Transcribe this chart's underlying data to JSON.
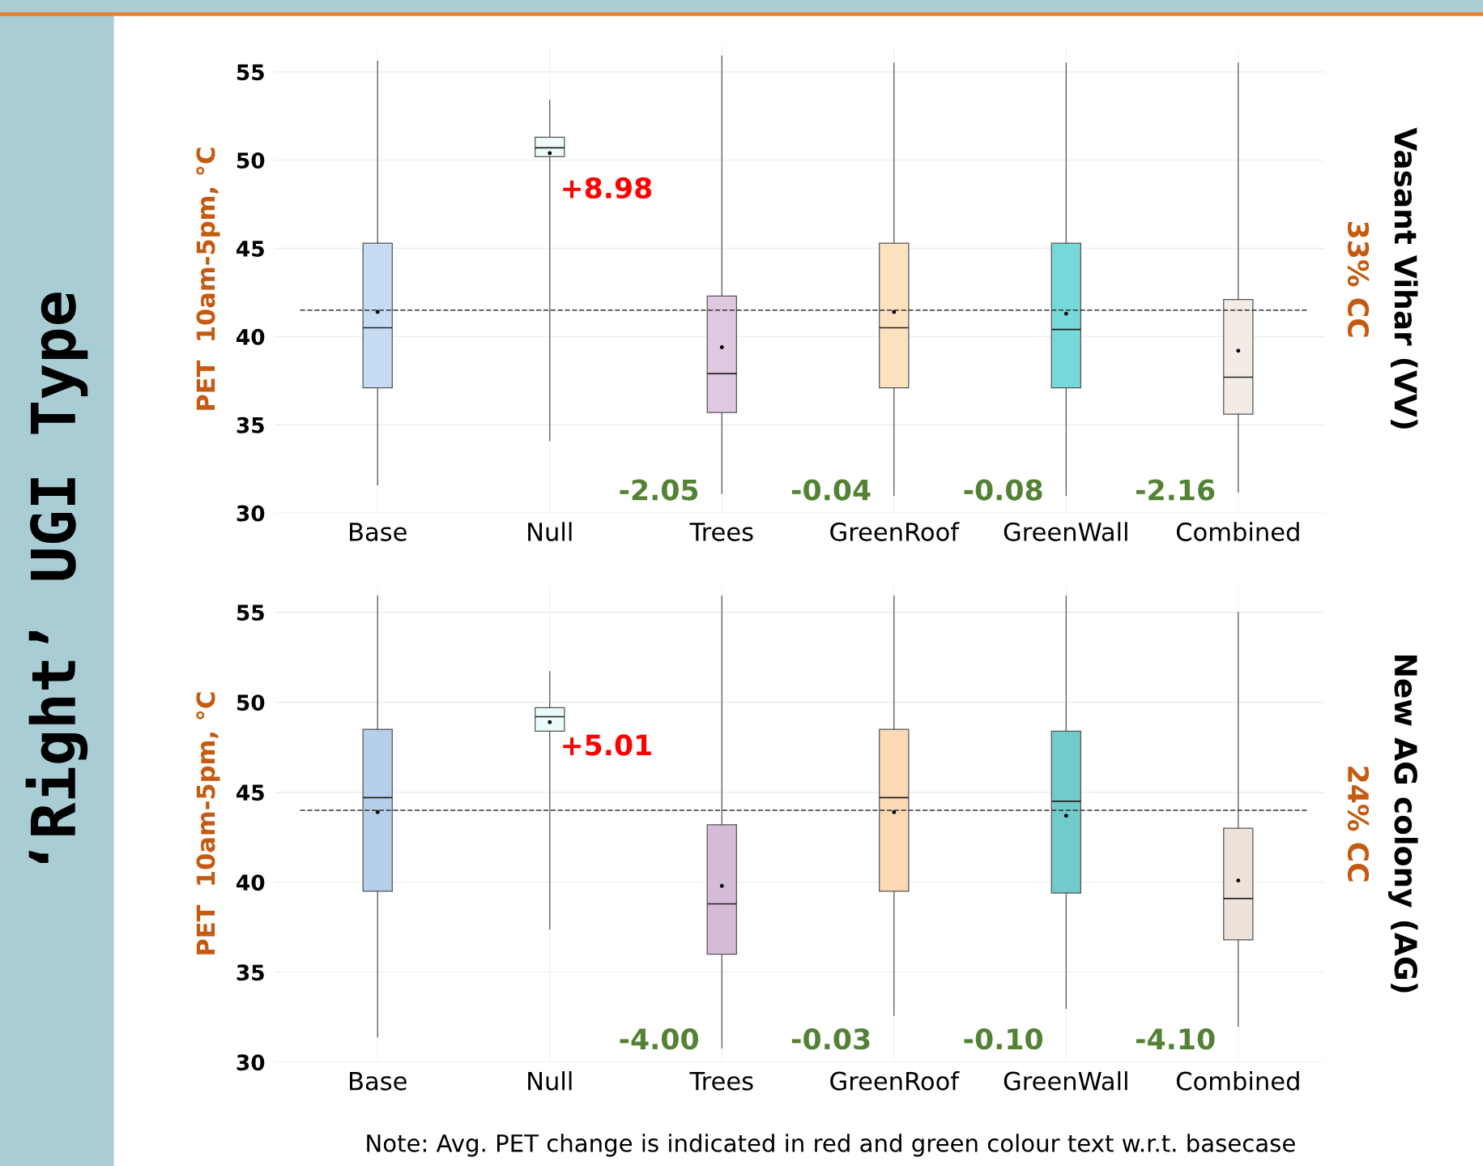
{
  "chart_data": [
    {
      "type": "box",
      "ylabel": "PET  10am-5pm, °C",
      "categories": [
        "Base",
        "Null",
        "Trees",
        "GreenRoof",
        "GreenWall",
        "Combined"
      ],
      "colors": [
        "#c6dcf2",
        "#eefbfb",
        "#dfc9e0",
        "#fde2c0",
        "#76d9d9",
        "#f3ece6"
      ],
      "boxes": [
        {
          "low": 31.6,
          "q1": 37.1,
          "median": 40.5,
          "q3": 45.3,
          "high": 55.6,
          "mean": 41.4
        },
        {
          "low": 34.1,
          "q1": 50.2,
          "median": 50.7,
          "q3": 51.3,
          "high": 53.4,
          "mean": 50.4
        },
        {
          "low": 31.1,
          "q1": 35.7,
          "median": 37.9,
          "q3": 42.3,
          "high": 55.9,
          "mean": 39.4
        },
        {
          "low": 31,
          "q1": 37.1,
          "median": 40.5,
          "q3": 45.3,
          "high": 55.5,
          "mean": 41.4
        },
        {
          "low": 31,
          "q1": 37.1,
          "median": 40.4,
          "q3": 45.3,
          "high": 55.5,
          "mean": 41.3
        },
        {
          "low": 31.2,
          "q1": 35.6,
          "median": 37.7,
          "q3": 42.1,
          "high": 55.5,
          "mean": 39.2
        }
      ],
      "ylim": [
        30,
        56.5
      ],
      "yticks": [
        30,
        35,
        40,
        45,
        50,
        55
      ],
      "grid": true,
      "ref_lines": [
        {
          "axis": "y",
          "value": 41.5,
          "line_style": "dashed",
          "color": "#333333"
        }
      ],
      "annotations": [
        "‘Right’ UGI Type",
        "+8.98",
        "-2.05",
        "-0.04",
        "-0.08",
        "-2.16",
        "Vasant Vihar (VV)",
        "33% CC"
      ]
    },
    {
      "type": "box",
      "ylabel": "PET  10am-5pm, °C",
      "categories": [
        "Base",
        "Null",
        "Trees",
        "GreenRoof",
        "GreenWall",
        "Combined"
      ],
      "colors": [
        "#b6cfeb",
        "#ebfbfb",
        "#d7bcd7",
        "#fdd8b4",
        "#72cbcb",
        "#ede2da"
      ],
      "boxes": [
        {
          "low": 31.4,
          "q1": 39.5,
          "median": 44.7,
          "q3": 48.5,
          "high": 55.9,
          "mean": 43.9
        },
        {
          "low": 37.4,
          "q1": 48.4,
          "median": 49.2,
          "q3": 49.7,
          "high": 51.7,
          "mean": 48.9
        },
        {
          "low": 30.8,
          "q1": 36,
          "median": 38.8,
          "q3": 43.2,
          "high": 55.9,
          "mean": 39.8
        },
        {
          "low": 32.6,
          "q1": 39.5,
          "median": 44.7,
          "q3": 48.5,
          "high": 55.9,
          "mean": 43.9
        },
        {
          "low": 33,
          "q1": 39.4,
          "median": 44.5,
          "q3": 48.4,
          "high": 55.9,
          "mean": 43.7
        },
        {
          "low": 32,
          "q1": 36.8,
          "median": 39.1,
          "q3": 43,
          "high": 55,
          "mean": 40.1
        }
      ],
      "ylim": [
        30,
        56.5
      ],
      "yticks": [
        30,
        35,
        40,
        45,
        50,
        55
      ],
      "grid": true,
      "ref_lines": [
        {
          "axis": "y",
          "value": 44.0,
          "line_style": "dashed",
          "color": "#333333"
        }
      ],
      "annotations": [
        "+5.01",
        "-4.00",
        "-0.03",
        "-0.10",
        "-4.10",
        "New AG colony (AG)",
        "24% CC",
        "Note: Avg. PET change is indicated in red and green colour text w.r.t. basecase"
      ]
    }
  ]
}
